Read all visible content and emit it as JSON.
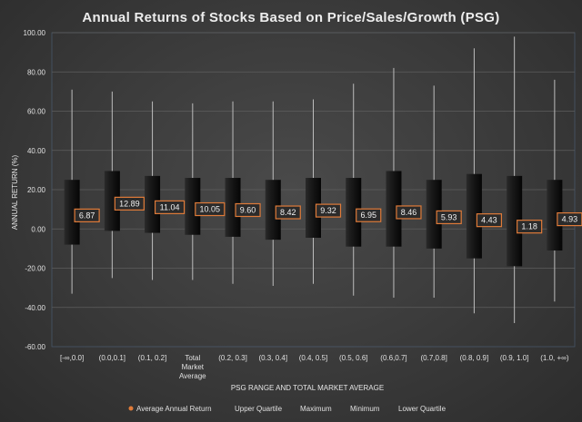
{
  "chart_data": {
    "type": "box",
    "title": "Annual Returns of Stocks Based on Price/Sales/Growth (PSG)",
    "xlabel": "PSG RANGE AND TOTAL MARKET AVERAGE",
    "ylabel": "ANNUAL RETURN (%)",
    "ylim": [
      -60,
      100
    ],
    "yticks": [
      "-60.00",
      "-40.00",
      "-20.00",
      "0.00",
      "20.00",
      "40.00",
      "60.00",
      "80.00",
      "100.00"
    ],
    "categories": [
      [
        "[-∞,0.0]"
      ],
      [
        "(0.0,0.1]"
      ],
      [
        "(0.1, 0.2]"
      ],
      [
        "Total",
        "Market",
        "Average"
      ],
      [
        "(0.2, 0.3]"
      ],
      [
        "(0.3, 0.4]"
      ],
      [
        "(0.4, 0.5]"
      ],
      [
        "(0.5, 0.6]"
      ],
      [
        "(0.6,0.7]"
      ],
      [
        "(0.7,0.8]"
      ],
      [
        "(0.8, 0.9]"
      ],
      [
        "(0.9, 1.0]"
      ],
      [
        "(1.0, +∞)"
      ]
    ],
    "series": [
      {
        "name": "Average Annual Return",
        "values": [
          6.87,
          12.89,
          11.04,
          10.05,
          9.6,
          8.42,
          9.32,
          6.95,
          8.46,
          5.93,
          4.43,
          1.18,
          4.93
        ],
        "labels": [
          "6.87",
          "12.89",
          "11.04",
          "10.05",
          "9.60",
          "8.42",
          "9.32",
          "6.95",
          "8.46",
          "5.93",
          "4.43",
          "1.18",
          "4.93"
        ]
      },
      {
        "name": "Upper Quartile",
        "values": [
          25,
          29.5,
          27,
          26,
          26,
          25,
          26,
          26,
          29.5,
          25,
          28,
          27,
          25
        ]
      },
      {
        "name": "Maximum",
        "values": [
          71,
          70,
          65,
          64,
          65,
          65,
          66,
          74,
          82,
          73,
          92,
          98,
          76
        ]
      },
      {
        "name": "Minimum",
        "values": [
          -33,
          -25,
          -26,
          -26,
          -28,
          -29,
          -28,
          -34,
          -35,
          -35,
          -43,
          -48,
          -37
        ]
      },
      {
        "name": "Lower Quartile",
        "values": [
          -8,
          -1,
          -2,
          -3,
          -4,
          -5.5,
          -4.5,
          -9,
          -9,
          -10,
          -15,
          -19,
          -11
        ]
      }
    ],
    "legend_position": "bottom",
    "grid": true,
    "colors": {
      "average_marker": "#e07b39",
      "whisker": "#bdbdbd",
      "gridline": "#5e5e5e",
      "box_dark": "#141414",
      "box_light": "#3c3c3c"
    }
  }
}
